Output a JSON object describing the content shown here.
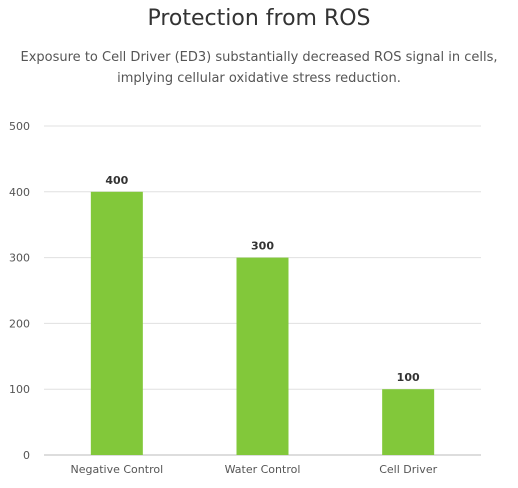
{
  "chart_data": {
    "type": "bar",
    "title": "Protection from ROS",
    "subtitle": "Exposure to Cell Driver (ED3) substantially decreased ROS signal in cells, implying cellular oxidative stress reduction.",
    "categories": [
      "Negative Control",
      "Water Control",
      "Cell Driver"
    ],
    "values": [
      400,
      300,
      100
    ],
    "data_labels": [
      "400",
      "300",
      "100"
    ],
    "xlabel": "",
    "ylabel": "",
    "ylim": [
      0,
      500
    ],
    "yticks": [
      0,
      100,
      200,
      300,
      400,
      500
    ],
    "grid": true,
    "legend": "none",
    "bar_color": "#82c83a",
    "grid_color": "#e0e0e0",
    "axis_color": "#bbbbbb"
  }
}
